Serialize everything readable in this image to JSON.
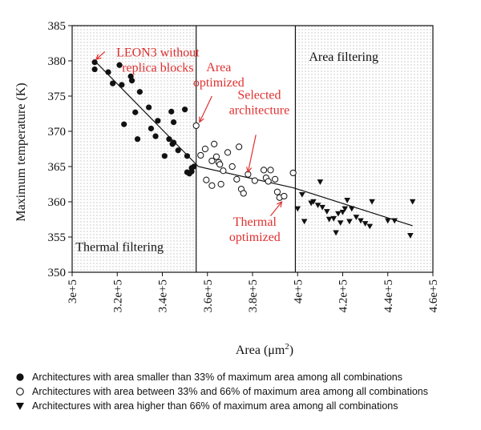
{
  "chart_data": {
    "type": "scatter",
    "title": "",
    "xlabel": "Area (μm",
    "xlabel_sup": "2",
    "xlabel_close": ")",
    "ylabel": "Maximum temperature (K)",
    "xlim": [
      300000,
      460000
    ],
    "ylim": [
      350,
      385
    ],
    "xticks": [
      300000,
      320000,
      340000,
      360000,
      380000,
      400000,
      420000,
      440000,
      460000
    ],
    "xtick_labels": [
      "3e+5",
      "3.2e+5",
      "3.4e+5",
      "3.6e+5",
      "3.8e+5",
      "4e+5",
      "4.2e+5",
      "4.4e+5",
      "4.6e+5"
    ],
    "yticks": [
      350,
      355,
      360,
      365,
      370,
      375,
      380,
      385
    ],
    "ytick_labels": [
      "350",
      "355",
      "360",
      "365",
      "370",
      "375",
      "380",
      "385"
    ],
    "grid": false,
    "regions": [
      {
        "x_from": 300000,
        "x_to": 355000,
        "pattern": "dotted",
        "label": "Thermal filtering",
        "label_at": [
          301500,
          353
        ]
      },
      {
        "x_from": 355000,
        "x_to": 399000,
        "pattern": "none"
      },
      {
        "x_from": 399000,
        "x_to": 460000,
        "pattern": "dotted",
        "label": "Area filtering",
        "label_at": [
          405000,
          380
        ]
      }
    ],
    "fit_lines": [
      {
        "points": [
          [
            310000,
            380
          ],
          [
            356000,
            365
          ],
          [
            398000,
            362
          ],
          [
            451000,
            356.6
          ]
        ]
      }
    ],
    "annotations": [
      {
        "lines": [
          "LEON3 without",
          "replica blocks"
        ],
        "at": [
          338000,
          380.6
        ],
        "color": "#e03030",
        "arrow_from": [
          314500,
          381.3
        ],
        "arrow_to": [
          310600,
          380.2
        ]
      },
      {
        "lines": [
          "Area",
          "optimized"
        ],
        "at": [
          365000,
          378.5
        ],
        "color": "#e03030",
        "arrow_from": [
          362000,
          375.0
        ],
        "arrow_to": [
          356500,
          371.3
        ]
      },
      {
        "lines": [
          "Selected",
          "architecture"
        ],
        "at": [
          383000,
          374.6
        ],
        "color": "#e03030",
        "arrow_from": [
          381500,
          369.5
        ],
        "arrow_to": [
          378000,
          364.2
        ]
      },
      {
        "lines": [
          "Thermal",
          "optimized"
        ],
        "at": [
          381000,
          356.6
        ],
        "color": "#e03030",
        "arrow_from": [
          388000,
          358.0
        ],
        "arrow_to": [
          393000,
          360.0
        ]
      }
    ],
    "series": [
      {
        "name": "Architectures with area smaller than 33% of maximum area among all combinations",
        "marker": "filled-circle",
        "color": "#111111",
        "points": [
          [
            310000,
            379.8
          ],
          [
            310000,
            378.8
          ],
          [
            316000,
            378.4
          ],
          [
            318000,
            376.8
          ],
          [
            321000,
            379.4
          ],
          [
            322000,
            376.6
          ],
          [
            326000,
            377.8
          ],
          [
            326500,
            377.2
          ],
          [
            328000,
            372.7
          ],
          [
            330000,
            375.6
          ],
          [
            334000,
            373.4
          ],
          [
            335000,
            370.4
          ],
          [
            337000,
            369.3
          ],
          [
            338000,
            371.5
          ],
          [
            341000,
            366.5
          ],
          [
            343000,
            368.9
          ],
          [
            345000,
            368.4
          ],
          [
            344000,
            372.8
          ],
          [
            345000,
            371.3
          ],
          [
            347000,
            367.3
          ],
          [
            350000,
            373.1
          ],
          [
            351000,
            366.5
          ],
          [
            351000,
            364.2
          ],
          [
            352000,
            364.0
          ],
          [
            353000,
            364.3
          ],
          [
            323000,
            371.0
          ],
          [
            329000,
            368.9
          ],
          [
            344500,
            368.2
          ],
          [
            353000,
            364.8
          ],
          [
            354000,
            365.0
          ]
        ]
      },
      {
        "name": "Architectures with area between 33% and 66% of maximum area among all combinations",
        "marker": "open-circle",
        "color": "#111111",
        "points": [
          [
            355000,
            370.8
          ],
          [
            357000,
            366.6
          ],
          [
            359000,
            367.5
          ],
          [
            359500,
            363.1
          ],
          [
            362000,
            362.3
          ],
          [
            362000,
            365.8
          ],
          [
            363000,
            368.2
          ],
          [
            364000,
            366.4
          ],
          [
            365000,
            365.6
          ],
          [
            365500,
            365.3
          ],
          [
            366000,
            362.5
          ],
          [
            367000,
            364.4
          ],
          [
            369000,
            367.0
          ],
          [
            371000,
            365.0
          ],
          [
            373000,
            363.2
          ],
          [
            374000,
            367.8
          ],
          [
            375000,
            361.8
          ],
          [
            376000,
            361.2
          ],
          [
            378000,
            363.9
          ],
          [
            381000,
            363.0
          ],
          [
            385000,
            364.5
          ],
          [
            386000,
            363.4
          ],
          [
            387000,
            362.9
          ],
          [
            388000,
            364.5
          ],
          [
            390000,
            363.2
          ],
          [
            391000,
            361.4
          ],
          [
            392000,
            360.6
          ],
          [
            394000,
            360.8
          ],
          [
            398000,
            364.1
          ]
        ]
      },
      {
        "name": "Architectures with area higher than 66% of maximum area among all combinations",
        "marker": "filled-triangle-down",
        "color": "#111111",
        "points": [
          [
            400000,
            359.0
          ],
          [
            402000,
            361.0
          ],
          [
            403000,
            357.2
          ],
          [
            406000,
            359.8
          ],
          [
            407000,
            360.0
          ],
          [
            409000,
            359.5
          ],
          [
            410000,
            362.8
          ],
          [
            411000,
            359.2
          ],
          [
            413000,
            358.6
          ],
          [
            414000,
            357.5
          ],
          [
            416000,
            357.6
          ],
          [
            417000,
            355.6
          ],
          [
            418000,
            358.3
          ],
          [
            419000,
            357.0
          ],
          [
            420000,
            358.5
          ],
          [
            421000,
            359.0
          ],
          [
            422000,
            360.2
          ],
          [
            423000,
            357.2
          ],
          [
            424000,
            359.0
          ],
          [
            426000,
            357.8
          ],
          [
            428000,
            357.3
          ],
          [
            430000,
            356.9
          ],
          [
            432000,
            356.5
          ],
          [
            433000,
            360.0
          ],
          [
            440000,
            357.3
          ],
          [
            443000,
            357.3
          ],
          [
            450000,
            355.2
          ],
          [
            451000,
            360.0
          ]
        ]
      }
    ]
  }
}
